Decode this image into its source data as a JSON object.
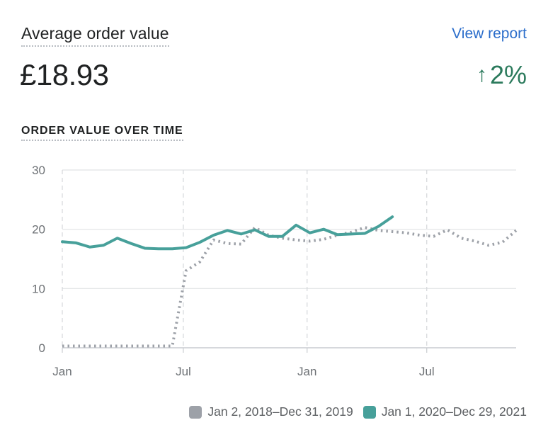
{
  "header": {
    "title": "Average order value",
    "link": "View report",
    "value": "£18.93",
    "change_arrow": "↑",
    "change_value": "2%"
  },
  "colors": {
    "current": "#47a09a",
    "previous": "#9da1a8",
    "positive": "#2b7a5c",
    "link": "#2c6ecb",
    "grid": "#e1e3e5"
  },
  "chart_data": {
    "type": "line",
    "title": "ORDER VALUE OVER TIME",
    "ylim": [
      0,
      30
    ],
    "yticks": [
      0,
      10,
      20,
      30
    ],
    "xticks": [
      {
        "label": "Jan",
        "t": 0
      },
      {
        "label": "Jul",
        "t": 8.8
      },
      {
        "label": "Jan",
        "t": 17.8
      },
      {
        "label": "Jul",
        "t": 26.5
      }
    ],
    "x_count": 34,
    "grid": true,
    "legend_position": "bottom-right",
    "series": [
      {
        "name": "Jan 2, 2018–Dec 31, 2019",
        "style": "dotted",
        "color": "#9da1a8",
        "values": [
          0.3,
          0.3,
          0.3,
          0.3,
          0.3,
          0.3,
          0.3,
          0.3,
          0.3,
          13.0,
          14.5,
          18.2,
          17.6,
          17.5,
          20.3,
          19.0,
          18.5,
          18.2,
          18.0,
          18.3,
          19.0,
          19.5,
          20.3,
          19.8,
          19.6,
          19.4,
          19.0,
          18.8,
          19.9,
          18.5,
          18.0,
          17.3,
          17.8,
          19.8
        ]
      },
      {
        "name": "Jan 1, 2020–Dec 29, 2021",
        "style": "solid",
        "color": "#47a09a",
        "values": [
          17.9,
          17.7,
          17.0,
          17.3,
          18.5,
          17.6,
          16.8,
          16.7,
          16.7,
          16.9,
          17.8,
          19.0,
          19.8,
          19.2,
          19.9,
          18.8,
          18.8,
          20.7,
          19.4,
          20.0,
          19.1,
          19.2,
          19.3,
          20.5,
          22.1
        ]
      }
    ]
  }
}
